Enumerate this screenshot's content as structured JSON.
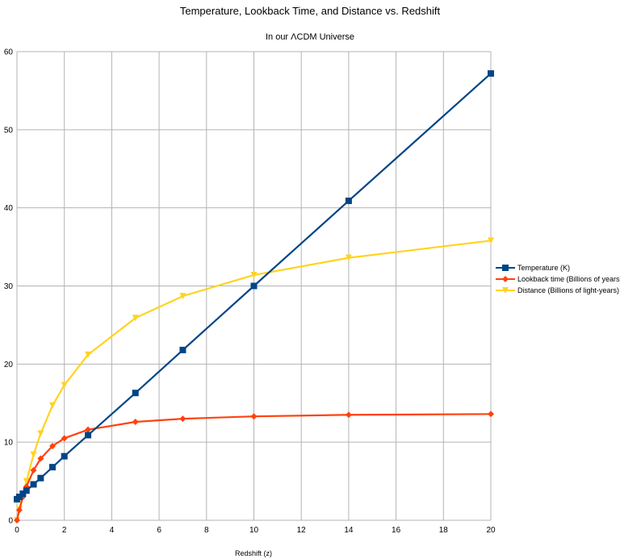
{
  "chart_data": {
    "type": "line",
    "title": "Temperature, Lookback Time, and Distance vs. Redshift",
    "subtitle": "In our ΛCDM Universe",
    "xlabel": "Redshift (z)",
    "ylabel": "",
    "xlim": [
      0,
      20
    ],
    "ylim": [
      0,
      60
    ],
    "x_ticks": [
      "0",
      "2",
      "4",
      "6",
      "8",
      "10",
      "12",
      "14",
      "16",
      "18",
      "20"
    ],
    "y_ticks": [
      "0",
      "10",
      "20",
      "30",
      "40",
      "50",
      "60"
    ],
    "grid": true,
    "legend_position": "right",
    "series": [
      {
        "name": "Temperature (K)",
        "color": "#004586",
        "marker": "square",
        "x": [
          0,
          0.1,
          0.25,
          0.4,
          0.7,
          1,
          1.5,
          2,
          3,
          5,
          7,
          10,
          14,
          20
        ],
        "y": [
          2.7,
          3.0,
          3.4,
          3.8,
          4.6,
          5.4,
          6.8,
          8.2,
          10.9,
          16.3,
          21.8,
          30.0,
          40.9,
          57.2
        ]
      },
      {
        "name": "Lookback time (Billions of years)",
        "color": "#ff420e",
        "marker": "diamond",
        "x": [
          0,
          0.1,
          0.25,
          0.4,
          0.7,
          1,
          1.5,
          2,
          3,
          5,
          7,
          10,
          14,
          20
        ],
        "y": [
          0,
          1.3,
          3.0,
          4.3,
          6.4,
          7.9,
          9.5,
          10.5,
          11.6,
          12.6,
          13.0,
          13.3,
          13.5,
          13.6
        ]
      },
      {
        "name": "Distance (Billions of light-years)",
        "color": "#ffd320",
        "marker": "triangle-down",
        "x": [
          0,
          0.1,
          0.25,
          0.4,
          0.7,
          1,
          1.5,
          2,
          3,
          5,
          7,
          10,
          14,
          20
        ],
        "y": [
          0,
          1.4,
          3.3,
          5.0,
          8.4,
          11.1,
          14.7,
          17.3,
          21.2,
          25.9,
          28.7,
          31.4,
          33.6,
          35.8
        ]
      }
    ]
  }
}
